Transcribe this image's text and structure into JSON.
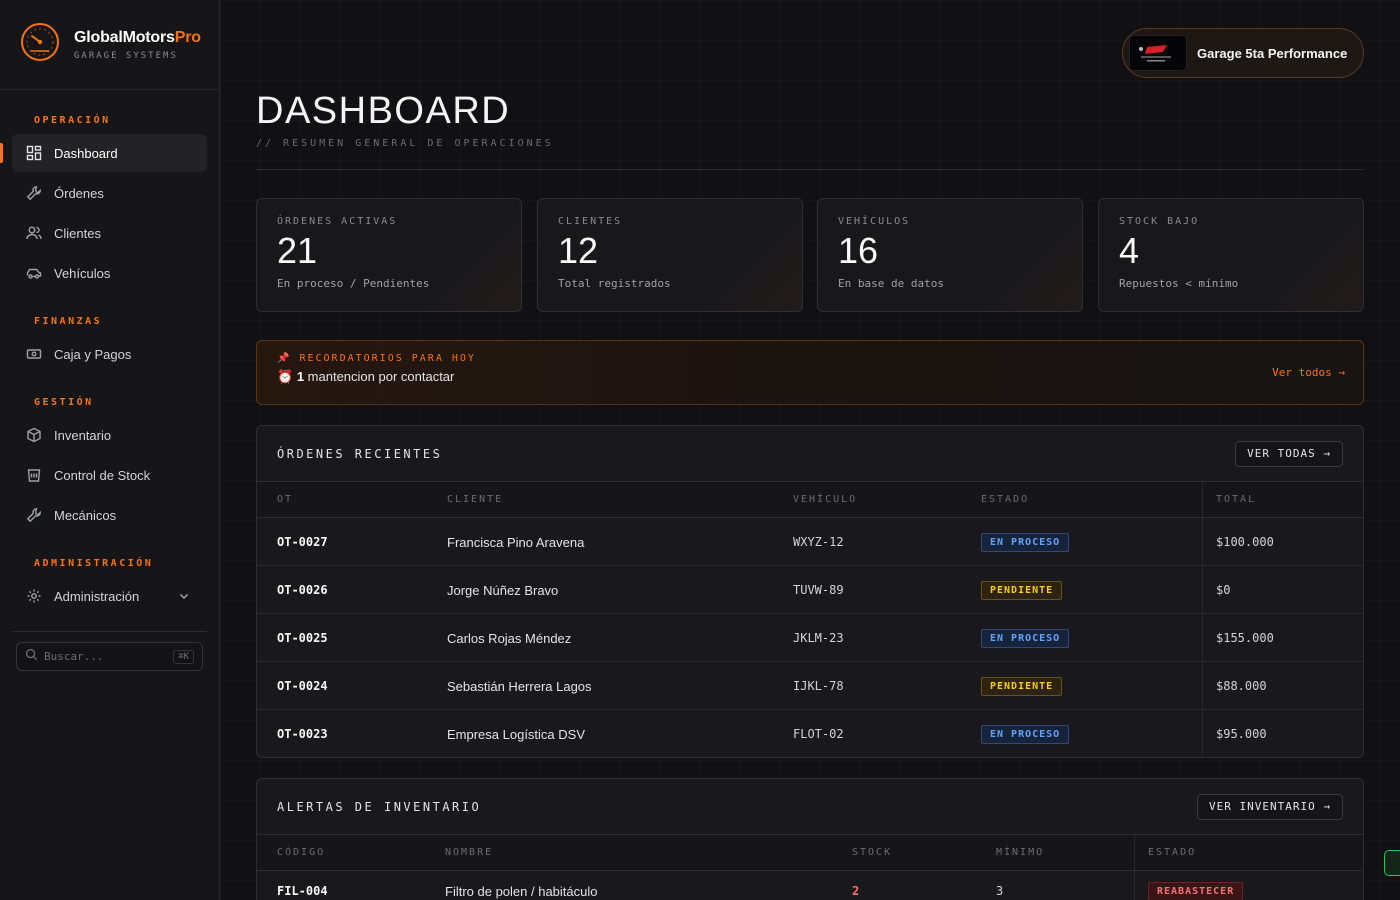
{
  "brand": {
    "name_main": "GlobalMotors",
    "name_accent": "Pro",
    "subtitle": "GARAGE SYSTEMS"
  },
  "sidebar": {
    "sections": [
      "OPERACIÓN",
      "FINANZAS",
      "GESTIÓN",
      "ADMINISTRACIÓN"
    ],
    "items": [
      {
        "label": "Dashboard",
        "icon": "dashboard-icon",
        "active": true
      },
      {
        "label": "Órdenes",
        "icon": "wrench-icon"
      },
      {
        "label": "Clientes",
        "icon": "users-icon"
      },
      {
        "label": "Vehículos",
        "icon": "car-icon"
      },
      {
        "label": "Caja y Pagos",
        "icon": "cash-icon"
      },
      {
        "label": "Inventario",
        "icon": "box-icon"
      },
      {
        "label": "Control de Stock",
        "icon": "bin-icon"
      },
      {
        "label": "Mecánicos",
        "icon": "wrench-icon"
      },
      {
        "label": "Administración",
        "icon": "gear-icon"
      }
    ],
    "search_placeholder": "Buscar...",
    "search_shortcut": "⌘K"
  },
  "header": {
    "garage_name": "Garage 5ta Performance",
    "title": "DASHBOARD",
    "subtitle": "// RESUMEN GENERAL DE OPERACIONES"
  },
  "stats": [
    {
      "label": "ÓRDENES ACTIVAS",
      "value": "21",
      "desc": "En proceso / Pendientes"
    },
    {
      "label": "CLIENTES",
      "value": "12",
      "desc": "Total registrados"
    },
    {
      "label": "VEHÍCULOS",
      "value": "16",
      "desc": "En base de datos"
    },
    {
      "label": "STOCK BAJO",
      "value": "4",
      "desc": "Repuestos < mínimo"
    }
  ],
  "reminder": {
    "title": "📌 RECORDATORIOS PARA HOY",
    "clock": "⏰",
    "count": "1",
    "text": "mantencion por contactar",
    "link": "Ver todos →"
  },
  "orders": {
    "title": "ÓRDENES RECIENTES",
    "button": "VER TODAS →",
    "columns": [
      "OT",
      "CLIENTE",
      "VEHÍCULO",
      "ESTADO",
      "TOTAL"
    ],
    "rows": [
      {
        "ot": "OT-0027",
        "cliente": "Francisca Pino Aravena",
        "vehiculo": "WXYZ-12",
        "estado": "EN PROCESO",
        "total": "$100.000"
      },
      {
        "ot": "OT-0026",
        "cliente": "Jorge Núñez Bravo",
        "vehiculo": "TUVW-89",
        "estado": "PENDIENTE",
        "total": "$0"
      },
      {
        "ot": "OT-0025",
        "cliente": "Carlos Rojas Méndez",
        "vehiculo": "JKLM-23",
        "estado": "EN PROCESO",
        "total": "$155.000"
      },
      {
        "ot": "OT-0024",
        "cliente": "Sebastián Herrera Lagos",
        "vehiculo": "IJKL-78",
        "estado": "PENDIENTE",
        "total": "$88.000"
      },
      {
        "ot": "OT-0023",
        "cliente": "Empresa Logística DSV",
        "vehiculo": "FLOT-02",
        "estado": "EN PROCESO",
        "total": "$95.000"
      }
    ]
  },
  "inventory": {
    "title": "ALERTAS DE INVENTARIO",
    "button": "VER INVENTARIO →",
    "columns": [
      "CÓDIGO",
      "NOMBRE",
      "STOCK",
      "MÍNIMO",
      "ESTADO"
    ],
    "rows": [
      {
        "codigo": "FIL-004",
        "nombre": "Filtro de polen / habitáculo",
        "stock": "2",
        "minimo": "3",
        "estado": "REABASTECER"
      }
    ]
  },
  "colors": {
    "accent": "#f97316",
    "proceso": "#60a5fa",
    "pendiente": "#facc15",
    "alert": "#f87171"
  }
}
